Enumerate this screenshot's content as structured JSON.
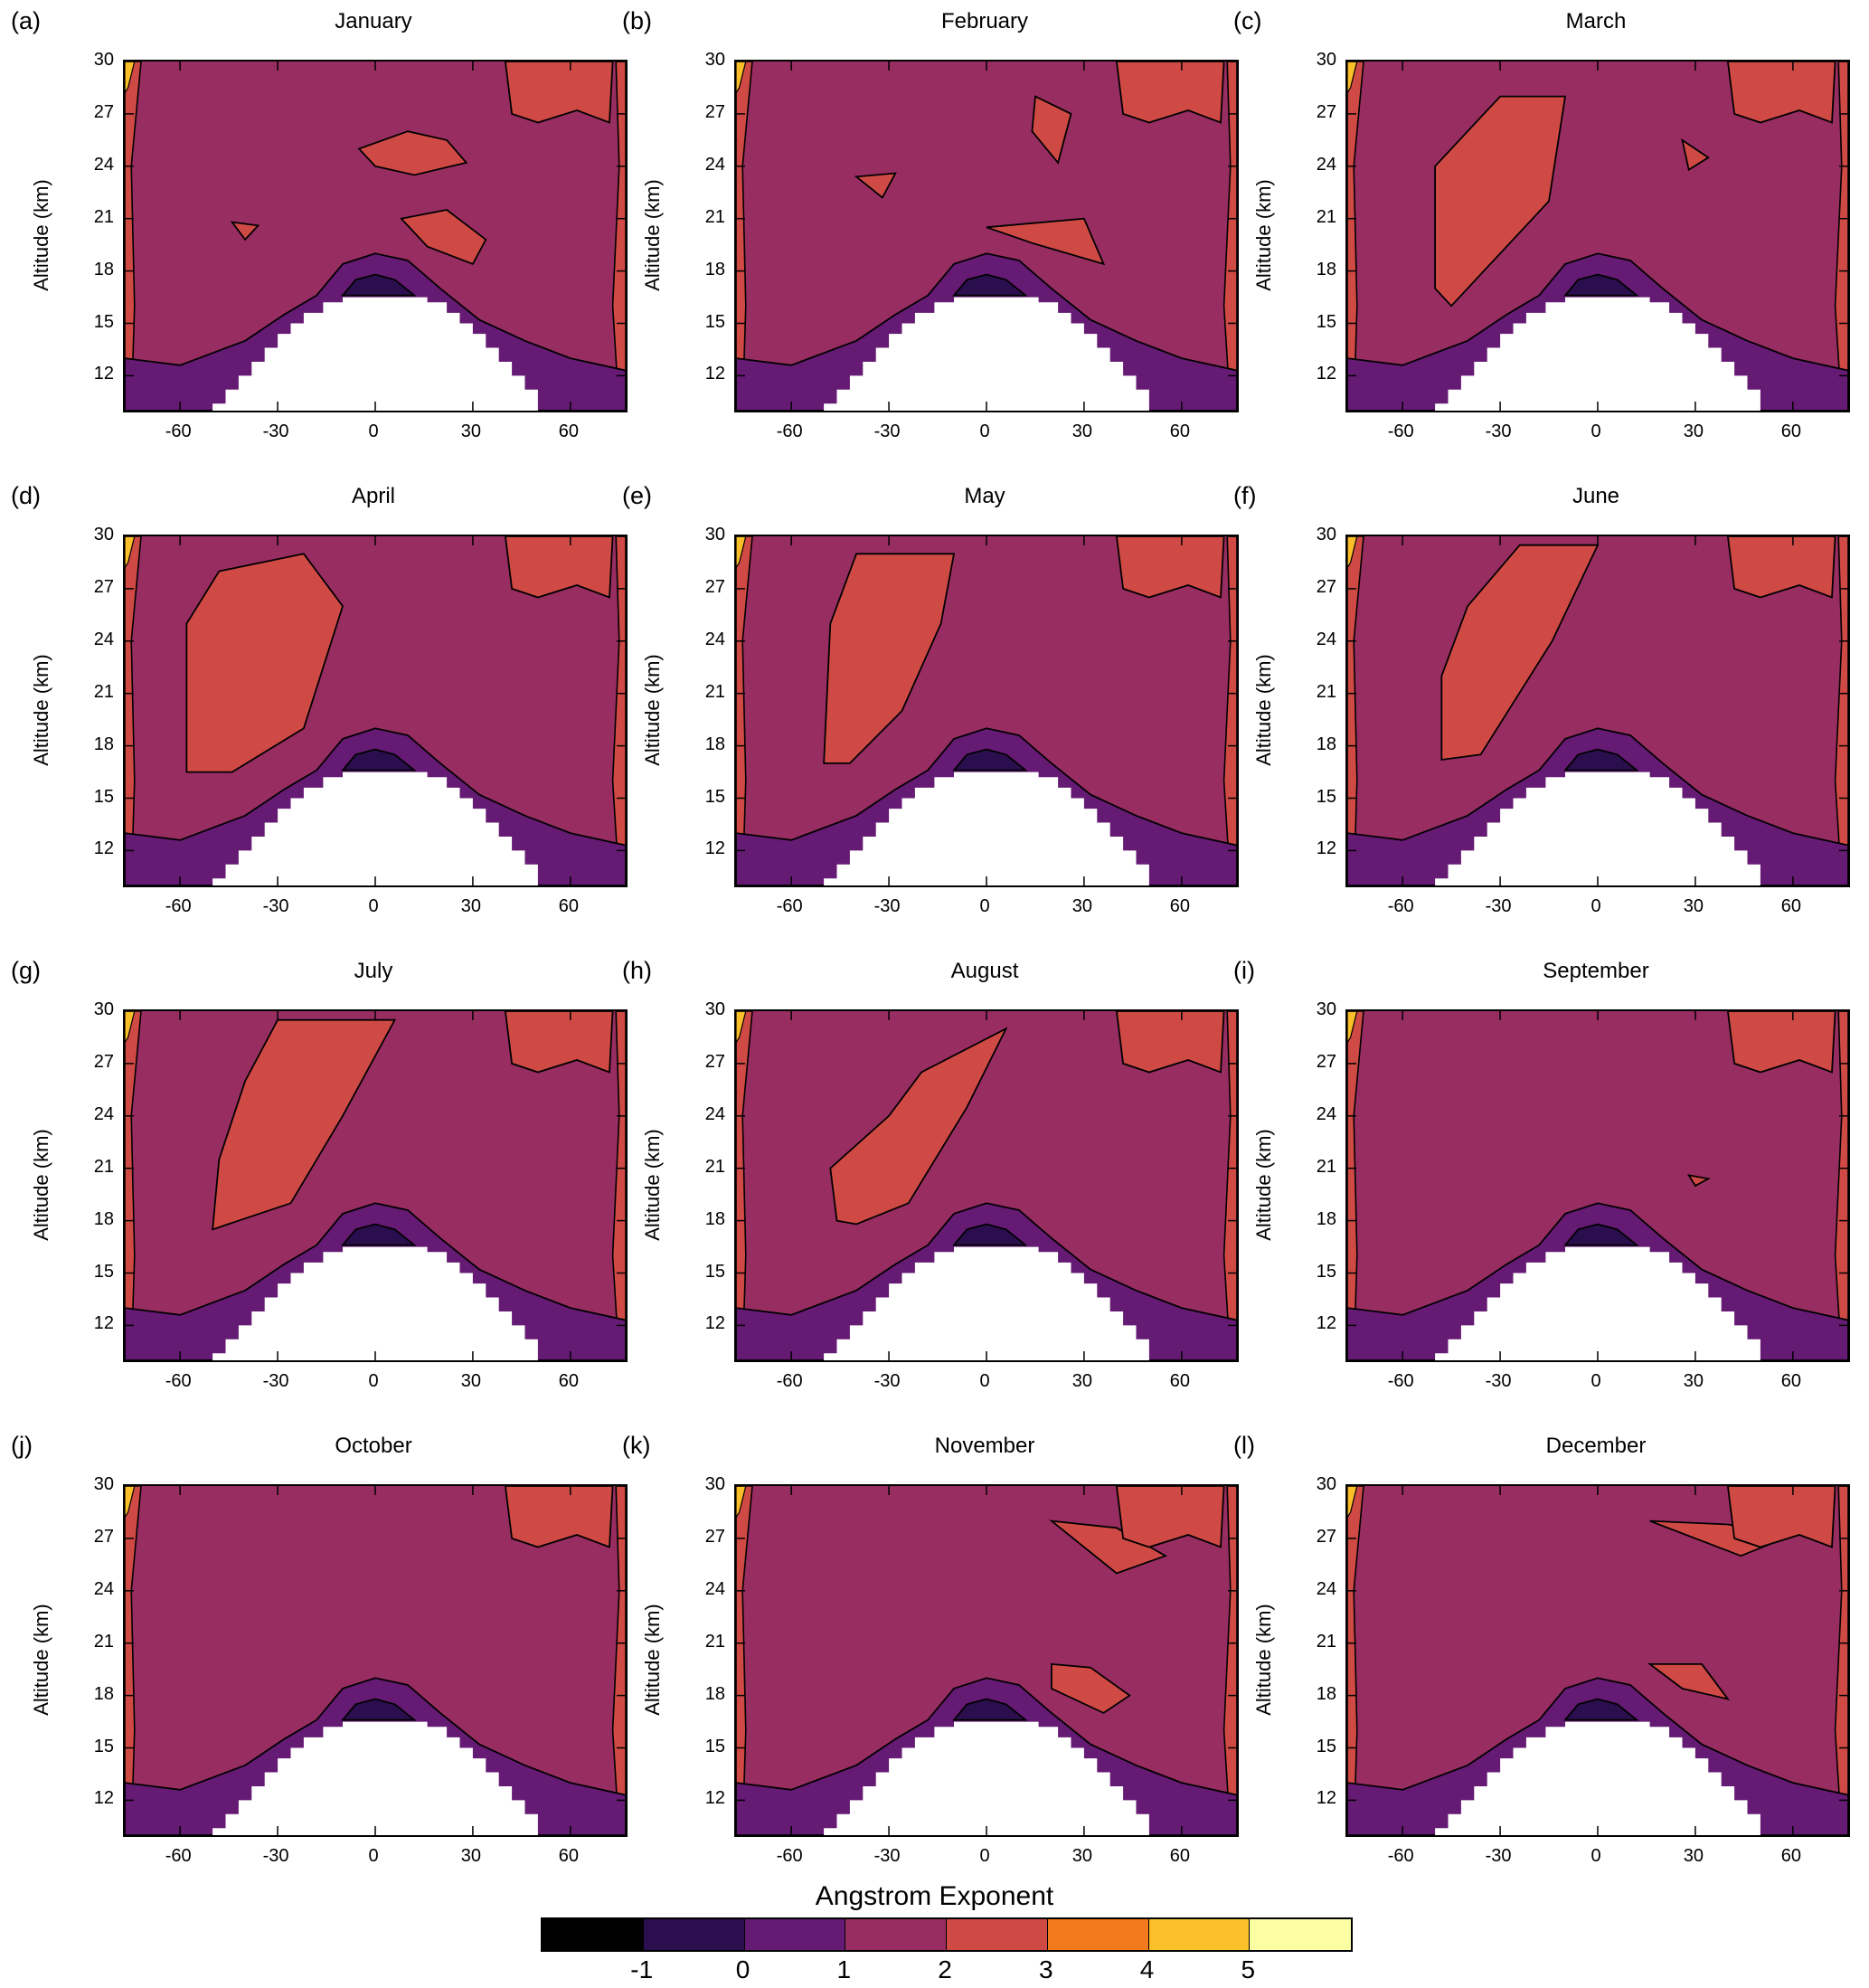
{
  "figure": {
    "colorbar": {
      "title": "Angstrom Exponent",
      "tick_labels": [
        "-1",
        "0",
        "1",
        "2",
        "3",
        "4",
        "5"
      ],
      "colors": [
        "#000000",
        "#2a0e4d",
        "#651a73",
        "#982d61",
        "#d04a45",
        "#f27a1c",
        "#fbbf29",
        "#fcfea3"
      ]
    }
  },
  "chart_data": {
    "type": "heatmap",
    "layout": "4x3 small multiples",
    "ylabel": "Altitude (km)",
    "xlabel": "",
    "x_ticks": [
      "-60",
      "-30",
      "0",
      "30",
      "60"
    ],
    "y_ticks": [
      "30",
      "27",
      "24",
      "21",
      "18",
      "15",
      "12"
    ],
    "xlim": [
      -77,
      77
    ],
    "ylim": [
      10,
      30
    ],
    "colorbar_levels": [
      -1,
      0,
      1,
      2,
      3,
      4,
      5
    ],
    "panels": [
      {
        "letter": "(a)",
        "title": "January"
      },
      {
        "letter": "(b)",
        "title": "February"
      },
      {
        "letter": "(c)",
        "title": "March"
      },
      {
        "letter": "(d)",
        "title": "April"
      },
      {
        "letter": "(e)",
        "title": "May"
      },
      {
        "letter": "(f)",
        "title": "June"
      },
      {
        "letter": "(g)",
        "title": "July"
      },
      {
        "letter": "(h)",
        "title": "August"
      },
      {
        "letter": "(i)",
        "title": "September"
      },
      {
        "letter": "(j)",
        "title": "October"
      },
      {
        "letter": "(k)",
        "title": "November"
      },
      {
        "letter": "(l)",
        "title": "December"
      }
    ],
    "contour_label": "2"
  }
}
